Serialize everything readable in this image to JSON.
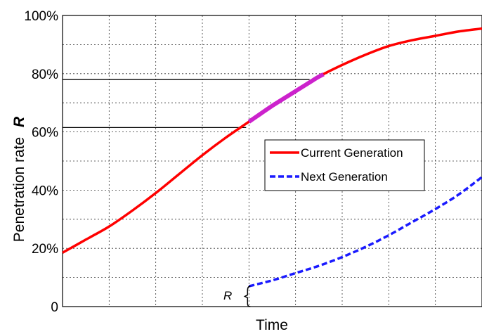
{
  "chart_data": {
    "type": "line",
    "xlabel": "Time",
    "ylabel": "Penetration  rate",
    "ylabel_symbol": "R",
    "ylim": [
      0,
      100
    ],
    "y_ticks": [
      {
        "value": 0,
        "label": "0"
      },
      {
        "value": 20,
        "label": "20%"
      },
      {
        "value": 40,
        "label": "40%"
      },
      {
        "value": 60,
        "label": "60%"
      },
      {
        "value": 80,
        "label": "80%"
      },
      {
        "value": 100,
        "label": "100%"
      }
    ],
    "x_tick_labels": [],
    "grid": true,
    "legend_position": "center-right",
    "series": [
      {
        "name": "Current Generation",
        "color": "#ff0000",
        "style": "solid",
        "x": [
          0,
          0.5,
          1,
          1.5,
          2,
          2.5,
          3,
          3.5,
          4,
          4.5,
          5,
          5.5,
          6,
          6.5,
          7,
          7.5,
          8,
          8.5,
          9
        ],
        "y": [
          18.5,
          23,
          27.5,
          33,
          39,
          45.5,
          52,
          58,
          63.5,
          69,
          74,
          79,
          83,
          86.5,
          89.5,
          91.5,
          93,
          94.5,
          95.5
        ]
      },
      {
        "name": "Next Generation",
        "color": "#1a1aff",
        "style": "dashed",
        "x": [
          4,
          4.5,
          5,
          5.5,
          6,
          6.5,
          7,
          7.5,
          8,
          8.5,
          9
        ],
        "y": [
          7,
          9,
          11.5,
          14,
          17,
          20.5,
          24.5,
          29,
          33.5,
          38.5,
          44.5
        ]
      }
    ],
    "highlight": {
      "color": "#cc22cc",
      "x_range": [
        4,
        5.6
      ]
    },
    "reference_lines": [
      61.5,
      78
    ],
    "annotation": {
      "text": "R"
    }
  }
}
